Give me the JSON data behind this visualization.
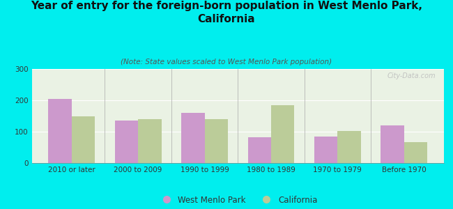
{
  "title": "Year of entry for the foreign-born population in West Menlo Park,\nCalifornia",
  "subtitle": "(Note: State values scaled to West Menlo Park population)",
  "categories": [
    "2010 or later",
    "2000 to 2009",
    "1990 to 1999",
    "1980 to 1989",
    "1970 to 1979",
    "Before 1970"
  ],
  "west_menlo_park": [
    205,
    135,
    160,
    82,
    85,
    120
  ],
  "california": [
    150,
    140,
    140,
    185,
    103,
    67
  ],
  "wmp_color": "#cc99cc",
  "ca_color": "#bbcc99",
  "background_color": "#00eeee",
  "ylim": [
    0,
    300
  ],
  "yticks": [
    0,
    100,
    200,
    300
  ],
  "bar_width": 0.35,
  "title_fontsize": 11,
  "subtitle_fontsize": 7.5,
  "tick_fontsize": 7.5,
  "legend_fontsize": 8.5,
  "watermark": "City-Data.com"
}
